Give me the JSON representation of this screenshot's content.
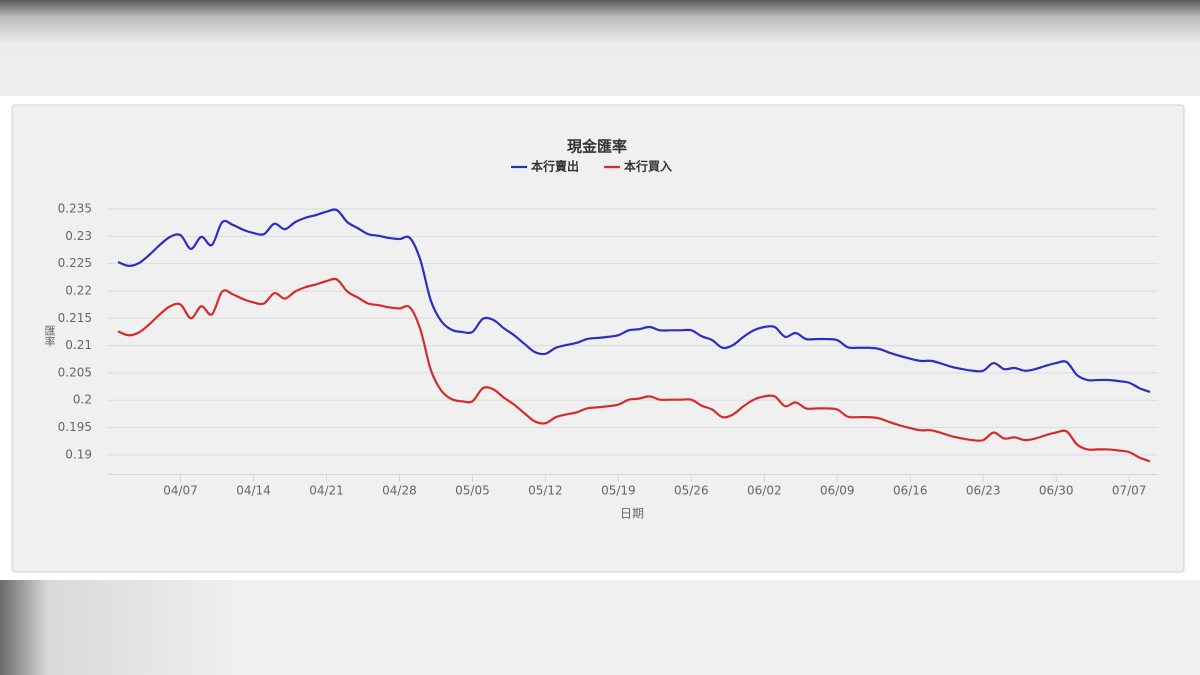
{
  "chart_data": {
    "type": "line",
    "title": "現金匯率",
    "x_label": "日期",
    "y_label": "匯率",
    "categories": [
      null,
      null,
      null,
      null,
      null,
      null,
      "04/07",
      null,
      null,
      null,
      null,
      null,
      null,
      "04/14",
      null,
      null,
      null,
      null,
      null,
      null,
      "04/21",
      null,
      null,
      null,
      null,
      null,
      null,
      "04/28",
      null,
      null,
      null,
      null,
      null,
      null,
      "05/05",
      null,
      null,
      null,
      null,
      null,
      null,
      "05/12",
      null,
      null,
      null,
      null,
      null,
      null,
      "05/19",
      null,
      null,
      null,
      null,
      null,
      null,
      "05/26",
      null,
      null,
      null,
      null,
      null,
      null,
      "06/02",
      null,
      null,
      null,
      null,
      null,
      null,
      "06/09",
      null,
      null,
      null,
      null,
      null,
      null,
      "06/16",
      null,
      null,
      null,
      null,
      null,
      null,
      "06/23",
      null,
      null,
      null,
      null,
      null,
      null,
      "06/30",
      null,
      null,
      null,
      null,
      null,
      null,
      "07/07",
      null,
      null
    ],
    "series": [
      {
        "name": "本行賣出",
        "color": "#2a2fbf",
        "values": [
          0.2253,
          0.2246,
          0.2251,
          0.2266,
          0.2284,
          0.2299,
          0.2302,
          0.2277,
          0.2299,
          0.2284,
          0.2326,
          0.2321,
          0.2312,
          0.2306,
          0.2304,
          0.2323,
          0.2313,
          0.2326,
          0.2334,
          0.2339,
          0.2345,
          0.2348,
          0.2326,
          0.2315,
          0.2304,
          0.2301,
          0.2297,
          0.2295,
          0.2297,
          0.2257,
          0.2183,
          0.2145,
          0.2129,
          0.2125,
          0.2125,
          0.2149,
          0.2147,
          0.2132,
          0.2119,
          0.2103,
          0.2088,
          0.2085,
          0.2096,
          0.2101,
          0.2105,
          0.2112,
          0.2114,
          0.2116,
          0.2119,
          0.2128,
          0.213,
          0.2134,
          0.2128,
          0.2128,
          0.2128,
          0.2128,
          0.2117,
          0.211,
          0.2096,
          0.2101,
          0.2116,
          0.2128,
          0.2134,
          0.2134,
          0.2116,
          0.2123,
          0.2112,
          0.2112,
          0.2112,
          0.211,
          0.2097,
          0.2096,
          0.2096,
          0.2094,
          0.2087,
          0.2081,
          0.2076,
          0.2072,
          0.2072,
          0.2067,
          0.2061,
          0.2057,
          0.2054,
          0.2054,
          0.2068,
          0.2057,
          0.2059,
          0.2054,
          0.2057,
          0.2063,
          0.2068,
          0.207,
          0.2046,
          0.2037,
          0.2037,
          0.2037,
          0.2035,
          0.2032,
          0.2022,
          0.2015
        ]
      },
      {
        "name": "本行買入",
        "color": "#d62b2b",
        "values": [
          0.2126,
          0.2119,
          0.2124,
          0.2139,
          0.2157,
          0.2172,
          0.2175,
          0.215,
          0.2172,
          0.2157,
          0.2199,
          0.2194,
          0.2185,
          0.2179,
          0.2177,
          0.2196,
          0.2186,
          0.2199,
          0.2207,
          0.2212,
          0.2218,
          0.2221,
          0.2199,
          0.2188,
          0.2177,
          0.2174,
          0.217,
          0.2168,
          0.217,
          0.213,
          0.2056,
          0.2018,
          0.2002,
          0.1998,
          0.1998,
          0.2022,
          0.202,
          0.2005,
          0.1992,
          0.1976,
          0.1961,
          0.1958,
          0.1969,
          0.1974,
          0.1978,
          0.1985,
          0.1987,
          0.1989,
          0.1992,
          0.2001,
          0.2003,
          0.2007,
          0.2001,
          0.2001,
          0.2001,
          0.2001,
          0.199,
          0.1983,
          0.1969,
          0.1974,
          0.1989,
          0.2001,
          0.2007,
          0.2007,
          0.1989,
          0.1996,
          0.1985,
          0.1985,
          0.1985,
          0.1983,
          0.197,
          0.1969,
          0.1969,
          0.1967,
          0.196,
          0.1954,
          0.1949,
          0.1945,
          0.1945,
          0.194,
          0.1934,
          0.193,
          0.1927,
          0.1927,
          0.1941,
          0.193,
          0.1932,
          0.1927,
          0.193,
          0.1936,
          0.1941,
          0.1943,
          0.1919,
          0.191,
          0.191,
          0.191,
          0.1908,
          0.1905,
          0.1895,
          0.1888
        ]
      }
    ],
    "ylim": [
      0.1865,
      0.2365
    ],
    "yticks": [
      0.19,
      0.195,
      0.2,
      0.205,
      0.21,
      0.215,
      0.22,
      0.225,
      0.23,
      0.235
    ],
    "grid": true
  }
}
